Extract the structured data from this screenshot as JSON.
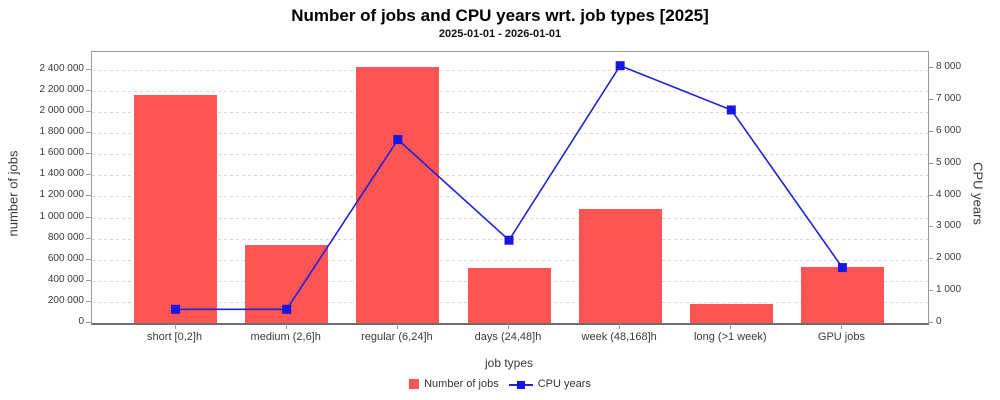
{
  "title": "Number of jobs and CPU years wrt. job types [2025]",
  "subtitle": "2025-01-01 - 2026-01-01",
  "colors": {
    "bar": "#ff5454",
    "line": "#2323d6",
    "marker": "#1717e0",
    "grid": "#d9d9d9",
    "plot_border": "#9a9a9a",
    "axis_line": "#6e6e6e",
    "text": "#3a3a3a"
  },
  "chart_data": {
    "type": "bar",
    "subtype": "bar+line combo, dual y-axes",
    "categories": [
      "short [0,2]h",
      "medium (2,6]h",
      "regular (6,24]h",
      "days (24,48]h",
      "week (48,168]h",
      "long (>1 week)",
      "GPU jobs"
    ],
    "series": [
      {
        "name": "Number of jobs",
        "type": "bar",
        "axis": "left",
        "color": "#ff5454",
        "values": [
          2160000,
          740000,
          2430000,
          525000,
          1080000,
          185000,
          535000
        ]
      },
      {
        "name": "CPU years",
        "type": "line",
        "axis": "right",
        "color": "#2323d6",
        "values": [
          430,
          430,
          5760,
          2600,
          8080,
          6690,
          1740
        ]
      }
    ],
    "title": "Number of jobs and CPU years wrt. job types [2025]",
    "subtitle": "2025-01-01 - 2026-01-01",
    "xlabel": "job types",
    "left_axis": {
      "title": "number of jobs",
      "tick_labels": [
        "0",
        "200 000",
        "400 000",
        "600 000",
        "800 000",
        "1 000 000",
        "1 200 000",
        "1 400 000",
        "1 600 000",
        "1 800 000",
        "2 000 000",
        "2 200 000",
        "2 400 000"
      ],
      "range_max": 2570000
    },
    "right_axis": {
      "title": "CPU years",
      "tick_labels": [
        "0",
        "1 000",
        "2 000",
        "3 000",
        "4 000",
        "5 000",
        "6 000",
        "7 000",
        "8 000"
      ],
      "range_max": 8510
    },
    "grid": true,
    "legend_position": "bottom-center"
  },
  "legend": {
    "items": [
      {
        "label": "Number of jobs",
        "swatch": "red-square"
      },
      {
        "label": "CPU years",
        "swatch": "blue-line-marker"
      }
    ]
  }
}
